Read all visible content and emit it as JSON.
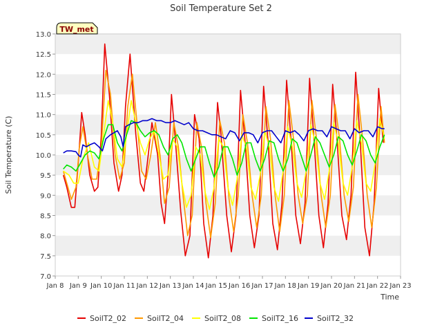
{
  "chart_data": {
    "type": "line",
    "title": "Soil Temperature Set 2",
    "xlabel": "Time",
    "ylabel": "Soil Temperature (C)",
    "xlim": [
      8,
      23
    ],
    "ylim": [
      7.0,
      13.0
    ],
    "x_ticks": [
      "Jan 8",
      "Jan 9",
      "Jan 10",
      "Jan 11",
      "Jan 12",
      "Jan 13",
      "Jan 14",
      "Jan 15",
      "Jan 16",
      "Jan 17",
      "Jan 18",
      "Jan 19",
      "Jan 20",
      "Jan 21",
      "Jan 22",
      "Jan 23"
    ],
    "y_ticks": [
      "7.0",
      "7.5",
      "8.0",
      "8.5",
      "9.0",
      "9.5",
      "10.0",
      "10.5",
      "11.0",
      "11.5",
      "12.0",
      "12.5",
      "13.0"
    ],
    "grid": "horizontal bands",
    "legend_position": "bottom",
    "annotation": "TW_met",
    "series": [
      {
        "name": "SoilT2_02",
        "color": "#e60000",
        "x": [
          8.35,
          8.5,
          8.7,
          8.85,
          9.0,
          9.15,
          9.3,
          9.5,
          9.7,
          9.85,
          10.0,
          10.15,
          10.35,
          10.55,
          10.75,
          10.9,
          11.05,
          11.25,
          11.5,
          11.7,
          11.85,
          12.0,
          12.2,
          12.45,
          12.6,
          12.75,
          12.9,
          13.05,
          13.2,
          13.45,
          13.65,
          13.85,
          14.05,
          14.25,
          14.45,
          14.65,
          14.85,
          15.05,
          15.2,
          15.45,
          15.65,
          15.85,
          16.05,
          16.25,
          16.45,
          16.65,
          16.85,
          17.05,
          17.25,
          17.45,
          17.65,
          17.85,
          18.05,
          18.25,
          18.45,
          18.65,
          18.85,
          19.05,
          19.25,
          19.45,
          19.65,
          19.85,
          20.05,
          20.25,
          20.45,
          20.65,
          20.85,
          21.05,
          21.25,
          21.45,
          21.65,
          21.85,
          22.05,
          22.25
        ],
        "y": [
          9.5,
          9.2,
          8.7,
          8.7,
          9.8,
          11.05,
          10.5,
          9.5,
          9.1,
          9.2,
          10.5,
          12.75,
          11.5,
          9.8,
          9.1,
          9.5,
          11.2,
          12.5,
          10.5,
          9.3,
          9.1,
          9.8,
          10.8,
          10.0,
          8.8,
          8.3,
          9.5,
          11.5,
          10.5,
          8.6,
          7.5,
          8.0,
          11.0,
          10.4,
          8.3,
          7.45,
          8.5,
          11.3,
          10.5,
          8.5,
          7.6,
          8.5,
          11.6,
          10.3,
          8.5,
          7.7,
          8.5,
          11.7,
          10.3,
          8.3,
          7.65,
          8.8,
          11.85,
          10.3,
          8.5,
          7.8,
          8.8,
          11.9,
          10.3,
          8.5,
          7.7,
          8.8,
          11.75,
          10.3,
          8.5,
          7.9,
          9.0,
          12.05,
          10.3,
          8.2,
          7.5,
          8.8,
          11.65,
          10.3
        ]
      },
      {
        "name": "SoilT2_04",
        "color": "#ff9900",
        "x": [
          8.35,
          8.5,
          8.7,
          8.9,
          9.05,
          9.2,
          9.4,
          9.6,
          9.8,
          10.0,
          10.2,
          10.4,
          10.6,
          10.8,
          11.0,
          11.15,
          11.35,
          11.55,
          11.75,
          11.95,
          12.15,
          12.35,
          12.55,
          12.75,
          12.95,
          13.15,
          13.35,
          13.55,
          13.75,
          13.95,
          14.15,
          14.35,
          14.55,
          14.75,
          14.95,
          15.15,
          15.35,
          15.55,
          15.75,
          15.95,
          16.15,
          16.35,
          16.55,
          16.75,
          16.95,
          17.15,
          17.35,
          17.55,
          17.75,
          17.95,
          18.15,
          18.35,
          18.55,
          18.75,
          18.95,
          19.15,
          19.35,
          19.55,
          19.75,
          19.95,
          20.15,
          20.35,
          20.55,
          20.75,
          20.95,
          21.15,
          21.35,
          21.55,
          21.75,
          21.95,
          22.15,
          22.3
        ],
        "y": [
          9.6,
          9.3,
          8.9,
          9.2,
          10.2,
          10.7,
          10.0,
          9.4,
          9.4,
          10.2,
          12.1,
          11.5,
          10.0,
          9.4,
          9.8,
          11.2,
          12.0,
          10.8,
          9.6,
          9.4,
          10.0,
          10.8,
          10.0,
          8.8,
          9.2,
          10.8,
          10.2,
          9.0,
          8.0,
          8.5,
          10.8,
          10.2,
          8.8,
          7.95,
          8.8,
          10.85,
          10.3,
          8.9,
          8.1,
          9.0,
          11.0,
          10.3,
          9.0,
          8.2,
          9.0,
          11.2,
          10.4,
          9.0,
          8.1,
          9.0,
          11.35,
          10.4,
          9.0,
          8.3,
          9.0,
          11.35,
          10.4,
          9.0,
          8.2,
          9.0,
          11.25,
          10.4,
          9.0,
          8.35,
          9.2,
          11.5,
          10.4,
          9.0,
          8.2,
          9.2,
          11.2,
          10.3
        ]
      },
      {
        "name": "SoilT2_08",
        "color": "#ffff00",
        "x": [
          8.35,
          8.6,
          8.8,
          9.0,
          9.2,
          9.45,
          9.7,
          9.9,
          10.1,
          10.3,
          10.5,
          10.7,
          10.9,
          11.1,
          11.3,
          11.5,
          11.7,
          11.9,
          12.1,
          12.3,
          12.5,
          12.7,
          12.9,
          13.1,
          13.3,
          13.5,
          13.7,
          13.9,
          14.1,
          14.3,
          14.5,
          14.7,
          14.9,
          15.1,
          15.3,
          15.5,
          15.7,
          15.9,
          16.1,
          16.3,
          16.5,
          16.7,
          16.9,
          17.1,
          17.3,
          17.5,
          17.7,
          17.9,
          18.1,
          18.3,
          18.5,
          18.7,
          18.9,
          19.1,
          19.3,
          19.5,
          19.7,
          19.9,
          20.1,
          20.3,
          20.5,
          20.7,
          20.9,
          21.1,
          21.3,
          21.5,
          21.7,
          21.9,
          22.1,
          22.3
        ],
        "y": [
          9.6,
          9.5,
          9.3,
          9.3,
          9.9,
          10.3,
          9.7,
          9.6,
          10.5,
          11.35,
          10.8,
          9.9,
          9.7,
          10.5,
          11.35,
          10.8,
          10.3,
          10.0,
          10.4,
          10.6,
          10.0,
          9.4,
          9.5,
          10.4,
          10.2,
          9.3,
          8.7,
          9.0,
          10.2,
          10.0,
          9.1,
          8.65,
          9.2,
          10.4,
          10.2,
          9.2,
          8.75,
          9.4,
          10.5,
          10.2,
          9.2,
          8.9,
          9.5,
          10.6,
          10.2,
          9.2,
          8.85,
          9.6,
          10.7,
          10.2,
          9.3,
          8.95,
          9.6,
          10.75,
          10.3,
          9.3,
          8.9,
          9.6,
          10.8,
          10.3,
          9.3,
          9.0,
          9.7,
          10.85,
          10.3,
          9.3,
          9.1,
          9.8,
          10.9,
          10.4
        ]
      },
      {
        "name": "SoilT2_16",
        "color": "#00e600",
        "x": [
          8.35,
          8.5,
          8.7,
          8.9,
          9.1,
          9.3,
          9.5,
          9.7,
          9.9,
          10.1,
          10.3,
          10.5,
          10.7,
          10.9,
          11.1,
          11.3,
          11.5,
          11.7,
          11.9,
          12.1,
          12.3,
          12.5,
          12.7,
          12.9,
          13.1,
          13.3,
          13.5,
          13.7,
          13.9,
          14.1,
          14.3,
          14.5,
          14.7,
          14.9,
          15.1,
          15.3,
          15.5,
          15.7,
          15.9,
          16.1,
          16.3,
          16.5,
          16.7,
          16.9,
          17.1,
          17.3,
          17.5,
          17.7,
          17.9,
          18.1,
          18.3,
          18.5,
          18.7,
          18.9,
          19.1,
          19.3,
          19.5,
          19.7,
          19.9,
          20.1,
          20.3,
          20.5,
          20.7,
          20.9,
          21.1,
          21.3,
          21.5,
          21.7,
          21.9,
          22.1,
          22.3
        ],
        "y": [
          9.65,
          9.75,
          9.7,
          9.6,
          9.8,
          10.0,
          10.1,
          10.05,
          9.9,
          10.4,
          10.75,
          10.75,
          10.3,
          10.1,
          10.5,
          10.85,
          10.8,
          10.6,
          10.45,
          10.55,
          10.6,
          10.5,
          10.2,
          10.0,
          10.4,
          10.5,
          10.3,
          9.9,
          9.6,
          9.9,
          10.2,
          10.2,
          9.8,
          9.45,
          9.7,
          10.2,
          10.2,
          9.9,
          9.5,
          9.8,
          10.3,
          10.3,
          9.9,
          9.6,
          9.9,
          10.35,
          10.3,
          9.9,
          9.6,
          9.9,
          10.4,
          10.3,
          9.95,
          9.6,
          10.0,
          10.45,
          10.3,
          10.0,
          9.7,
          10.0,
          10.45,
          10.35,
          10.0,
          9.75,
          10.1,
          10.5,
          10.35,
          10.0,
          9.8,
          10.2,
          10.5
        ]
      },
      {
        "name": "SoilT2_32",
        "color": "#0000cc",
        "x": [
          8.35,
          8.5,
          8.7,
          8.9,
          9.0,
          9.1,
          9.2,
          9.35,
          9.5,
          9.7,
          9.9,
          10.05,
          10.2,
          10.4,
          10.55,
          10.7,
          10.85,
          10.95,
          11.05,
          11.2,
          11.4,
          11.6,
          11.8,
          12.0,
          12.2,
          12.4,
          12.6,
          12.8,
          13.0,
          13.2,
          13.4,
          13.6,
          13.8,
          14.0,
          14.2,
          14.4,
          14.6,
          14.8,
          15.0,
          15.2,
          15.4,
          15.6,
          15.8,
          16.0,
          16.2,
          16.4,
          16.6,
          16.8,
          17.0,
          17.2,
          17.4,
          17.6,
          17.8,
          18.0,
          18.2,
          18.4,
          18.6,
          18.8,
          19.0,
          19.2,
          19.4,
          19.6,
          19.8,
          20.0,
          20.2,
          20.4,
          20.6,
          20.8,
          21.0,
          21.2,
          21.4,
          21.6,
          21.8,
          22.0,
          22.2,
          22.3
        ],
        "y": [
          10.05,
          10.1,
          10.1,
          10.08,
          10.0,
          9.95,
          10.25,
          10.2,
          10.25,
          10.3,
          10.2,
          10.1,
          10.4,
          10.5,
          10.55,
          10.6,
          10.45,
          10.2,
          10.7,
          10.75,
          10.8,
          10.8,
          10.85,
          10.85,
          10.9,
          10.85,
          10.85,
          10.8,
          10.8,
          10.85,
          10.8,
          10.75,
          10.8,
          10.65,
          10.6,
          10.6,
          10.55,
          10.5,
          10.5,
          10.45,
          10.4,
          10.6,
          10.55,
          10.35,
          10.55,
          10.55,
          10.5,
          10.3,
          10.55,
          10.6,
          10.6,
          10.45,
          10.3,
          10.6,
          10.55,
          10.6,
          10.5,
          10.35,
          10.6,
          10.65,
          10.6,
          10.6,
          10.45,
          10.7,
          10.65,
          10.6,
          10.6,
          10.4,
          10.65,
          10.55,
          10.6,
          10.6,
          10.45,
          10.7,
          10.65,
          10.65
        ]
      }
    ]
  }
}
